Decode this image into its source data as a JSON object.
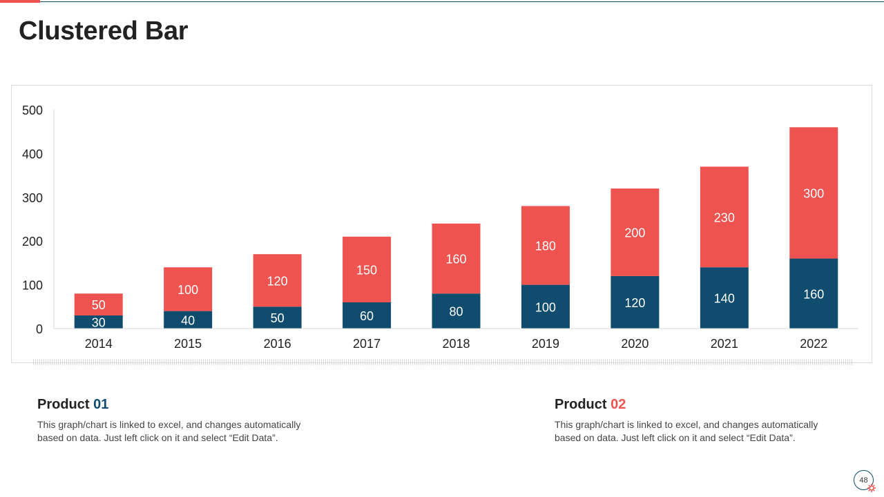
{
  "slide": {
    "title": "Clustered Bar",
    "page_number": "48"
  },
  "products": [
    {
      "label": "Product",
      "number": "01",
      "description": "This graph/chart is linked to excel, and changes automatically based on data. Just left click on it and select “Edit Data”."
    },
    {
      "label": "Product",
      "number": "02",
      "description": "This graph/chart is linked to excel, and changes automatically based on data. Just left click on it and select “Edit Data”."
    }
  ],
  "colors": {
    "product_01": "#0f4c6e",
    "product_02": "#ef5350",
    "accent": "#ef5350"
  },
  "icons": {
    "page_badge_decoration": "gear-icon"
  },
  "chart_data": {
    "type": "bar",
    "stacked": true,
    "categories": [
      "2014",
      "2015",
      "2016",
      "2017",
      "2018",
      "2019",
      "2020",
      "2021",
      "2022"
    ],
    "series": [
      {
        "values": [
          30,
          40,
          50,
          60,
          80,
          100,
          120,
          140,
          160
        ],
        "color": "#0f4c6e"
      },
      {
        "values": [
          50,
          100,
          120,
          150,
          160,
          180,
          200,
          230,
          300
        ],
        "color": "#ef5350"
      }
    ],
    "ylim": [
      0,
      500
    ],
    "yticks": [
      0,
      100,
      200,
      300,
      400,
      500
    ],
    "xlabel": "",
    "ylabel": "",
    "grid": false,
    "legend": "none",
    "data_labels": true
  }
}
